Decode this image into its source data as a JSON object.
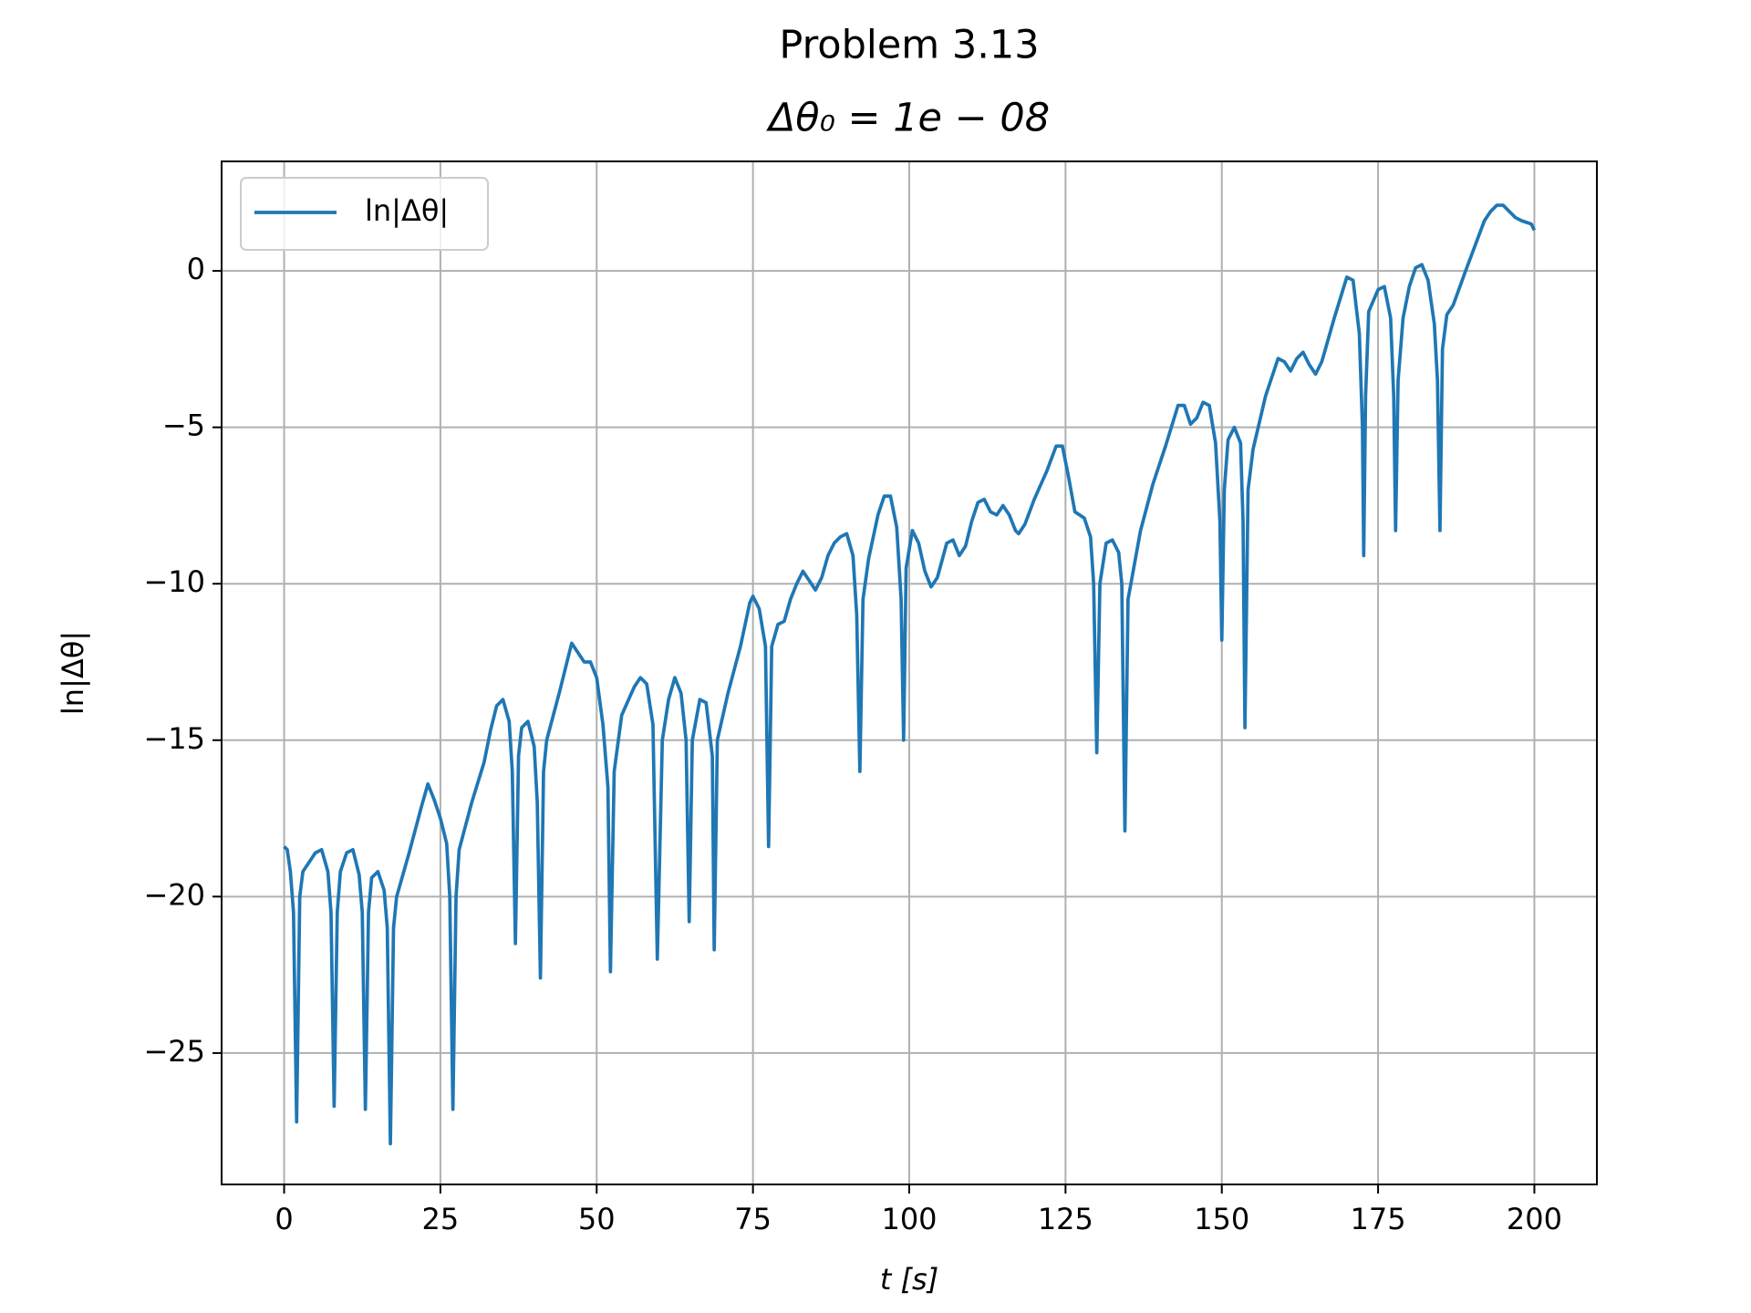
{
  "chart_data": {
    "type": "line",
    "title": "Problem 3.13",
    "subtitle": "Δθ₀ = 1e − 08",
    "x_label": "t [s]",
    "y_label": "ln|Δθ|",
    "xlim": [
      -10,
      210
    ],
    "ylim": [
      -29.2,
      3.5
    ],
    "xticks": [
      0,
      25,
      50,
      75,
      100,
      125,
      150,
      175,
      200
    ],
    "yticks": [
      {
        "value": -25,
        "label": "−25"
      },
      {
        "value": -20,
        "label": "−20"
      },
      {
        "value": -15,
        "label": "−15"
      },
      {
        "value": -10,
        "label": "−10"
      },
      {
        "value": -5,
        "label": "−5"
      },
      0
    ],
    "grid": true,
    "legend": "upper left",
    "x": [
      0,
      0.5,
      1,
      1.5,
      2,
      2.5,
      3,
      4,
      5,
      6,
      7,
      7.5,
      8,
      8.5,
      9,
      10,
      11,
      12,
      12.5,
      13,
      13.5,
      14,
      15,
      16,
      16.5,
      17,
      17.5,
      18,
      20,
      22,
      23,
      24,
      25,
      26,
      26.5,
      27,
      27.5,
      28,
      30,
      32,
      33,
      34,
      35,
      36,
      36.5,
      37,
      37.5,
      38,
      39,
      40,
      40.5,
      41,
      41.5,
      42,
      44,
      46,
      47,
      48,
      49,
      50,
      51,
      51.8,
      52.2,
      52.8,
      54,
      56,
      57,
      58,
      59,
      59.7,
      60.5,
      61.5,
      62.5,
      63.5,
      64.3,
      64.8,
      65.3,
      66.5,
      67.5,
      68.5,
      68.8,
      69.3,
      71,
      73,
      74.5,
      75,
      76,
      77,
      77.5,
      78,
      79,
      80,
      81,
      82,
      83,
      84,
      85,
      86,
      87,
      88,
      89,
      90,
      91,
      91.6,
      92.1,
      92.6,
      93.5,
      95,
      96,
      97,
      98,
      98.7,
      99.1,
      99.5,
      100.5,
      101.5,
      102.5,
      103.5,
      104.5,
      106,
      107,
      108,
      109,
      110,
      111,
      112,
      113,
      114,
      115,
      116,
      117,
      117.5,
      118.5,
      120,
      122,
      123.5,
      124.5,
      125.5,
      126.5,
      128,
      129,
      129.5,
      130,
      130.5,
      131.5,
      132.5,
      133.5,
      134,
      134.5,
      135,
      137,
      139,
      141,
      143,
      144,
      145,
      146,
      147,
      148,
      149,
      149.7,
      150,
      150.4,
      151,
      152,
      153,
      153.4,
      153.7,
      154.2,
      155,
      157,
      159,
      160,
      161,
      162,
      163,
      164,
      165,
      166,
      168,
      170,
      171,
      172,
      172.5,
      172.7,
      173,
      173.5,
      175,
      176,
      177,
      177.5,
      177.8,
      178.2,
      179,
      180,
      181,
      182,
      183,
      184,
      184.5,
      184.9,
      185.3,
      186,
      187,
      189,
      190.5,
      192,
      193,
      194,
      195,
      196,
      197,
      198,
      199.5,
      200
    ],
    "series": [
      {
        "name": "ln|Δθ|",
        "color": "#1f77b4",
        "values": [
          -18.4,
          -18.5,
          -19.2,
          -20.5,
          -27.2,
          -20,
          -19.2,
          -18.9,
          -18.6,
          -18.5,
          -19.2,
          -20.5,
          -26.7,
          -20.5,
          -19.2,
          -18.6,
          -18.5,
          -19.3,
          -20.5,
          -26.8,
          -20.5,
          -19.4,
          -19.2,
          -19.8,
          -21,
          -27.9,
          -21,
          -20,
          -18.6,
          -17.1,
          -16.4,
          -16.9,
          -17.5,
          -18.3,
          -20,
          -26.8,
          -20,
          -18.5,
          -17,
          -15.7,
          -14.7,
          -13.9,
          -13.7,
          -14.4,
          -16,
          -21.5,
          -15.5,
          -14.6,
          -14.4,
          -15.2,
          -17,
          -22.6,
          -16,
          -15,
          -13.5,
          -11.9,
          -12.2,
          -12.5,
          -12.5,
          -13,
          -14.5,
          -16.5,
          -22.4,
          -16,
          -14.2,
          -13.3,
          -13,
          -13.2,
          -14.5,
          -22,
          -15,
          -13.7,
          -13,
          -13.5,
          -15,
          -20.8,
          -15,
          -13.7,
          -13.8,
          -15.5,
          -21.7,
          -15,
          -13.5,
          -12,
          -10.6,
          -10.4,
          -10.8,
          -12,
          -18.4,
          -12,
          -11.3,
          -11.2,
          -10.5,
          -10,
          -9.6,
          -9.9,
          -10.2,
          -9.8,
          -9.1,
          -8.7,
          -8.5,
          -8.4,
          -9.1,
          -11,
          -16,
          -10.5,
          -9.2,
          -7.8,
          -7.2,
          -7.2,
          -8.2,
          -10.5,
          -15,
          -9.5,
          -8.3,
          -8.7,
          -9.6,
          -10.1,
          -9.8,
          -8.7,
          -8.6,
          -9.1,
          -8.8,
          -8,
          -7.4,
          -7.3,
          -7.7,
          -7.8,
          -7.5,
          -7.8,
          -8.3,
          -8.4,
          -8.1,
          -7.3,
          -6.4,
          -5.6,
          -5.6,
          -6.6,
          -7.7,
          -7.9,
          -8.5,
          -10,
          -15.4,
          -10,
          -8.7,
          -8.6,
          -9,
          -10,
          -17.9,
          -10.5,
          -8.3,
          -6.8,
          -5.6,
          -4.3,
          -4.3,
          -4.9,
          -4.7,
          -4.2,
          -4.3,
          -5.5,
          -8,
          -11.8,
          -7,
          -5.4,
          -5,
          -5.5,
          -8,
          -14.6,
          -7,
          -5.7,
          -4,
          -2.8,
          -2.9,
          -3.2,
          -2.8,
          -2.6,
          -3,
          -3.3,
          -2.9,
          -1.5,
          -0.2,
          -0.3,
          -2,
          -5,
          -9.1,
          -4,
          -1.3,
          -0.6,
          -0.5,
          -1.5,
          -4,
          -8.3,
          -3.5,
          -1.5,
          -0.5,
          0.1,
          0.2,
          -0.3,
          -1.7,
          -3.5,
          -8.3,
          -2.5,
          -1.4,
          -1.1,
          0,
          0.8,
          1.6,
          1.9,
          2.1,
          2.1,
          1.9,
          1.7,
          1.6,
          1.5,
          1.3
        ]
      }
    ]
  }
}
